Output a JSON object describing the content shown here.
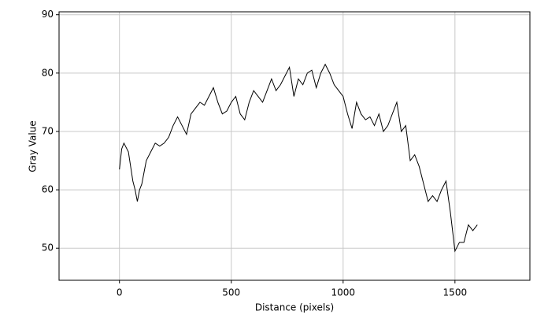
{
  "chart_data": {
    "type": "line",
    "x_label": "Distance (pixels)",
    "y_label": "Gray Value",
    "x": [
      0,
      10,
      20,
      40,
      50,
      60,
      70,
      80,
      90,
      100,
      110,
      120,
      140,
      160,
      180,
      200,
      220,
      240,
      260,
      280,
      300,
      320,
      340,
      360,
      380,
      400,
      420,
      440,
      460,
      480,
      500,
      520,
      540,
      560,
      580,
      600,
      620,
      640,
      660,
      680,
      700,
      720,
      740,
      760,
      780,
      800,
      820,
      840,
      860,
      880,
      900,
      920,
      940,
      960,
      980,
      1000,
      1020,
      1040,
      1060,
      1080,
      1100,
      1120,
      1140,
      1160,
      1180,
      1200,
      1220,
      1240,
      1260,
      1280,
      1300,
      1320,
      1340,
      1360,
      1380,
      1400,
      1420,
      1440,
      1460,
      1480,
      1500,
      1520,
      1540,
      1560,
      1580,
      1600
    ],
    "series": [
      {
        "color": "#000000",
        "values": [
          63.5,
          67,
          68,
          66.5,
          64,
          61.5,
          60,
          58,
          60,
          61,
          63,
          65,
          66.5,
          68,
          67.5,
          68,
          69,
          71,
          72.5,
          71,
          69.5,
          73,
          74,
          75,
          74.5,
          76,
          77.5,
          75,
          73,
          73.5,
          75,
          76,
          73,
          72,
          75,
          77,
          76,
          75,
          77,
          79,
          77,
          78,
          79.5,
          81,
          76,
          79,
          78,
          80,
          80.5,
          77.5,
          80,
          81.5,
          80,
          78,
          77,
          76,
          73,
          70.5,
          75,
          73,
          72,
          72.5,
          71,
          73,
          70,
          71,
          73,
          75,
          70,
          71,
          65,
          66,
          64,
          61,
          58,
          59,
          58,
          60,
          61.5,
          56,
          49.5,
          51,
          51,
          54,
          53,
          54
        ]
      }
    ],
    "xlim": [
      -270,
      1835
    ],
    "ylim": [
      44.5,
      90.5
    ],
    "xticks": [
      0,
      500,
      1000,
      1500
    ],
    "yticks": [
      50,
      60,
      70,
      80,
      90
    ],
    "grid": true
  }
}
